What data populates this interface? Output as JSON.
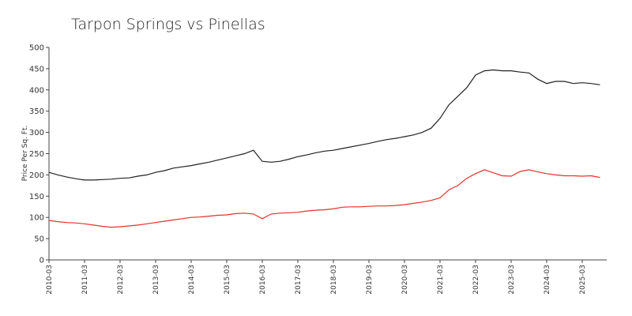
{
  "chart_data": {
    "type": "line",
    "title": "Tarpon Springs vs Pinellas",
    "y_label": "Price Per Sq. Ft.",
    "x": [
      "2010-03",
      "2010-06",
      "2010-09",
      "2010-12",
      "2011-03",
      "2011-06",
      "2011-09",
      "2011-12",
      "2012-03",
      "2012-06",
      "2012-09",
      "2012-12",
      "2013-03",
      "2013-06",
      "2013-09",
      "2013-12",
      "2014-03",
      "2014-06",
      "2014-09",
      "2014-12",
      "2015-03",
      "2015-06",
      "2015-09",
      "2015-12",
      "2016-03",
      "2016-06",
      "2016-09",
      "2016-12",
      "2017-03",
      "2017-06",
      "2017-09",
      "2017-12",
      "2018-03",
      "2018-06",
      "2018-09",
      "2018-12",
      "2019-03",
      "2019-06",
      "2019-09",
      "2019-12",
      "2020-03",
      "2020-06",
      "2020-09",
      "2020-12",
      "2021-03",
      "2021-06",
      "2021-09",
      "2021-12",
      "2022-03",
      "2022-06",
      "2022-09",
      "2022-12",
      "2023-03",
      "2023-06",
      "2023-09",
      "2023-12",
      "2024-03",
      "2024-06",
      "2024-09",
      "2024-12",
      "2025-03",
      "2025-06",
      "2025-09"
    ],
    "series": [
      {
        "color": "#222222",
        "values": [
          206,
          200,
          195,
          191,
          188,
          188,
          189,
          190,
          192,
          193,
          197,
          200,
          206,
          210,
          216,
          219,
          222,
          226,
          230,
          235,
          240,
          245,
          250,
          258,
          232,
          230,
          232,
          237,
          243,
          247,
          252,
          256,
          258,
          262,
          266,
          270,
          274,
          279,
          283,
          286,
          290,
          294,
          300,
          310,
          333,
          365,
          385,
          405,
          435,
          445,
          447,
          445,
          445,
          442,
          440,
          425,
          415,
          420,
          420,
          415,
          417,
          415,
          412
        ]
      },
      {
        "color": "#e8302a",
        "values": [
          93,
          90,
          88,
          87,
          85,
          82,
          79,
          77,
          78,
          80,
          82,
          85,
          88,
          91,
          94,
          97,
          100,
          101,
          103,
          105,
          106,
          109,
          110,
          108,
          97,
          108,
          110,
          111,
          112,
          115,
          117,
          118,
          120,
          124,
          125,
          125,
          126,
          127,
          127,
          128,
          130,
          133,
          136,
          140,
          146,
          165,
          175,
          192,
          203,
          212,
          205,
          198,
          197,
          208,
          212,
          207,
          203,
          200,
          198,
          198,
          197,
          198,
          194
        ]
      }
    ],
    "xlim": [
      "2010-03",
      "2025-11"
    ],
    "xticks": [
      "2010-03",
      "2011-03",
      "2012-03",
      "2013-03",
      "2014-03",
      "2015-03",
      "2016-03",
      "2017-03",
      "2018-03",
      "2019-03",
      "2020-03",
      "2021-03",
      "2022-03",
      "2023-03",
      "2024-03",
      "2025-03"
    ],
    "ylim": [
      0,
      500
    ],
    "yticks": [
      0,
      50,
      100,
      150,
      200,
      250,
      300,
      350,
      400,
      450,
      500
    ]
  }
}
